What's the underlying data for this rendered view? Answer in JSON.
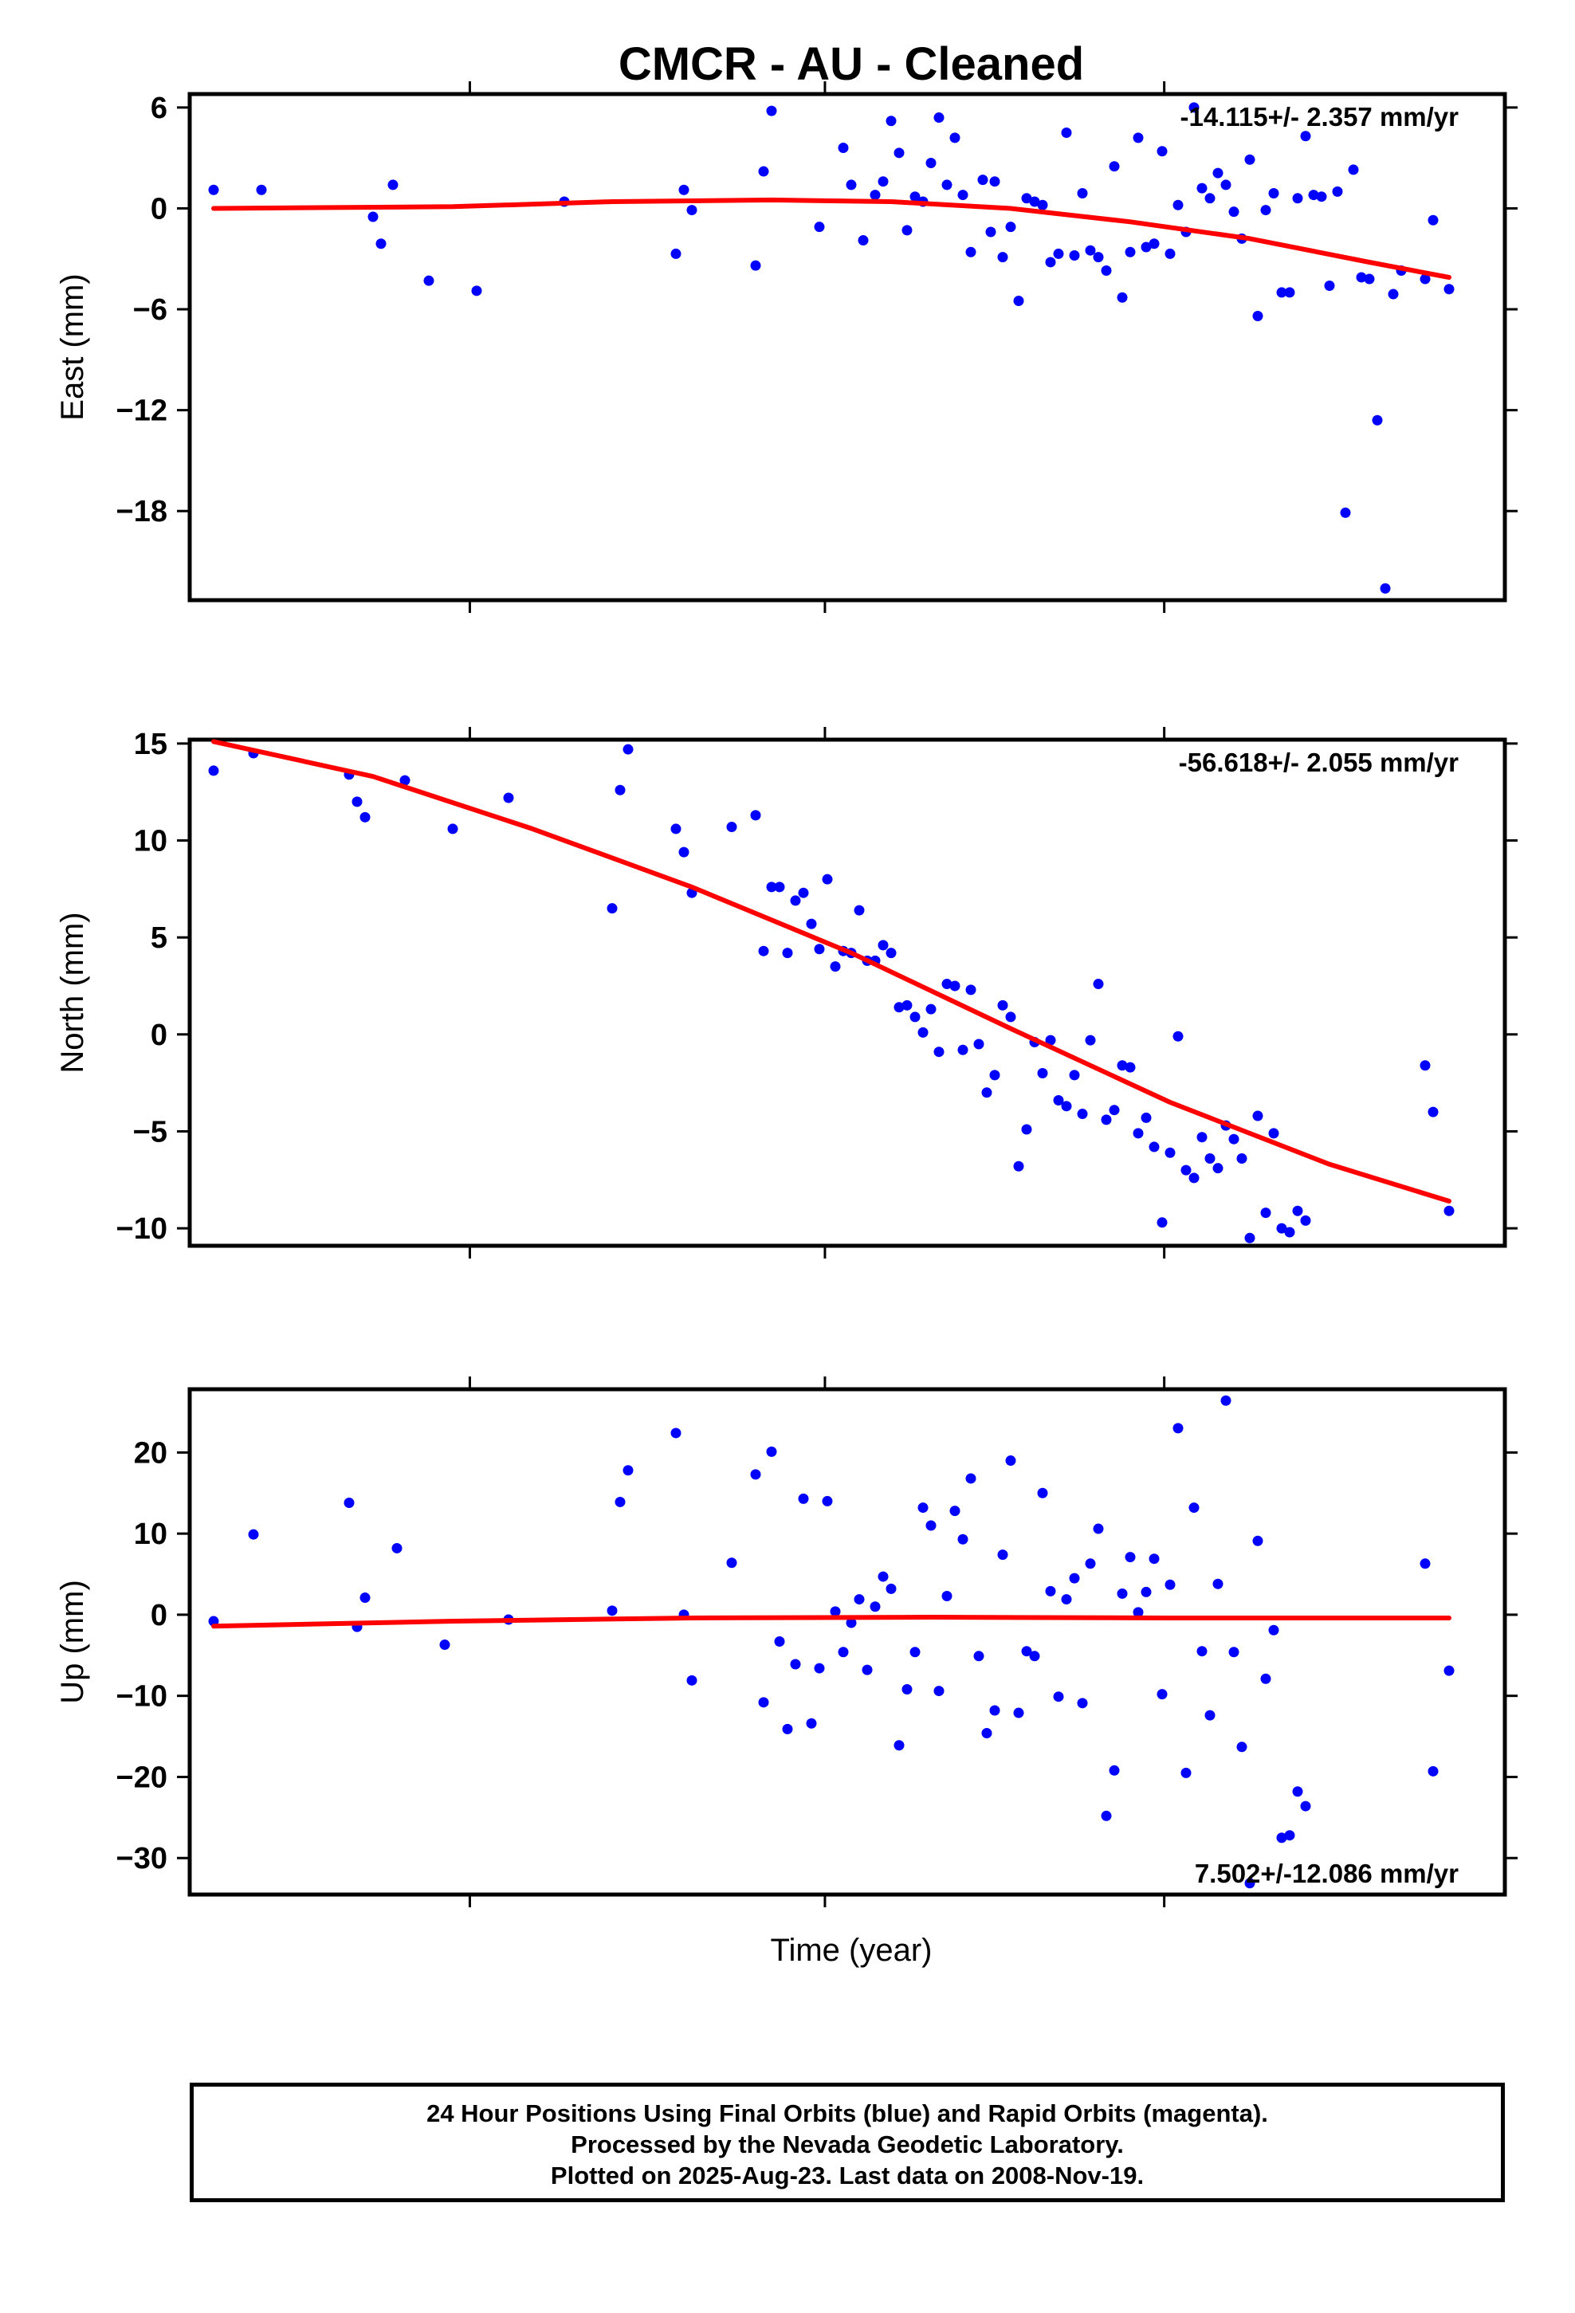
{
  "chart_data": {
    "title": "CMCR  - AU - Cleaned",
    "xlabel": "Time (year)",
    "type": "scatter",
    "panels": [
      {
        "name": "east",
        "ylabel": "East (mm)",
        "ylim": [
          -23.3,
          6.8
        ],
        "yticks": [
          6,
          0,
          -6,
          -12,
          -18
        ],
        "ytick_labels": [
          "6",
          "0",
          "−6",
          "−12",
          "−18"
        ],
        "rate_text": "-14.115+/- 2.357 mm/yr",
        "rate_pos": "top-right",
        "points": [
          [
            0.0,
            1.1
          ],
          [
            0.06,
            1.1
          ],
          [
            0.2,
            -0.5
          ],
          [
            0.21,
            -2.1
          ],
          [
            0.225,
            1.4
          ],
          [
            0.27,
            -4.3
          ],
          [
            0.33,
            -4.9
          ],
          [
            0.44,
            0.4
          ],
          [
            0.58,
            -2.7
          ],
          [
            0.59,
            1.1
          ],
          [
            0.6,
            -0.1
          ],
          [
            0.68,
            -3.4
          ],
          [
            0.69,
            2.2
          ],
          [
            0.7,
            5.8
          ],
          [
            0.76,
            -1.1
          ],
          [
            0.79,
            3.6
          ],
          [
            0.8,
            1.4
          ],
          [
            0.815,
            -1.9
          ],
          [
            0.83,
            0.8
          ],
          [
            0.84,
            1.6
          ],
          [
            0.85,
            5.2
          ],
          [
            0.86,
            3.3
          ],
          [
            0.87,
            -1.3
          ],
          [
            0.88,
            0.7
          ],
          [
            0.89,
            0.4
          ],
          [
            0.9,
            2.7
          ],
          [
            0.91,
            5.4
          ],
          [
            0.92,
            1.4
          ],
          [
            0.93,
            4.2
          ],
          [
            0.94,
            0.8
          ],
          [
            0.95,
            -2.6
          ],
          [
            0.965,
            1.7
          ],
          [
            0.975,
            -1.4
          ],
          [
            0.98,
            1.6
          ],
          [
            0.99,
            -2.9
          ],
          [
            1.0,
            -1.1
          ],
          [
            1.01,
            -5.5
          ],
          [
            1.02,
            0.6
          ],
          [
            1.03,
            0.4
          ],
          [
            1.04,
            0.2
          ],
          [
            1.05,
            -3.2
          ],
          [
            1.06,
            -2.7
          ],
          [
            1.07,
            4.5
          ],
          [
            1.08,
            -2.8
          ],
          [
            1.09,
            0.9
          ],
          [
            1.1,
            -2.5
          ],
          [
            1.11,
            -2.9
          ],
          [
            1.12,
            -3.7
          ],
          [
            1.13,
            2.5
          ],
          [
            1.14,
            -5.3
          ],
          [
            1.15,
            -2.6
          ],
          [
            1.16,
            4.2
          ],
          [
            1.17,
            -2.3
          ],
          [
            1.18,
            -2.1
          ],
          [
            1.19,
            3.4
          ],
          [
            1.2,
            -2.7
          ],
          [
            1.21,
            0.2
          ],
          [
            1.22,
            -1.4
          ],
          [
            1.23,
            6.0
          ],
          [
            1.24,
            1.2
          ],
          [
            1.25,
            0.6
          ],
          [
            1.26,
            2.1
          ],
          [
            1.27,
            1.4
          ],
          [
            1.28,
            -0.2
          ],
          [
            1.29,
            -1.8
          ],
          [
            1.3,
            2.9
          ],
          [
            1.31,
            -6.4
          ],
          [
            1.32,
            -0.1
          ],
          [
            1.33,
            0.9
          ],
          [
            1.34,
            -5.0
          ],
          [
            1.35,
            -5.0
          ],
          [
            1.36,
            0.6
          ],
          [
            1.37,
            4.3
          ],
          [
            1.38,
            0.8
          ],
          [
            1.39,
            0.7
          ],
          [
            1.4,
            -4.6
          ],
          [
            1.41,
            1.0
          ],
          [
            1.42,
            -18.1
          ],
          [
            1.43,
            2.3
          ],
          [
            1.44,
            -4.1
          ],
          [
            1.45,
            -4.2
          ],
          [
            1.46,
            -12.6
          ],
          [
            1.47,
            -22.6
          ],
          [
            1.48,
            -5.1
          ],
          [
            1.49,
            -3.7
          ],
          [
            1.52,
            -4.2
          ],
          [
            1.53,
            -0.7
          ],
          [
            1.55,
            -4.8
          ]
        ],
        "fit": [
          [
            0.0,
            0.0
          ],
          [
            0.3,
            0.1
          ],
          [
            0.5,
            0.4
          ],
          [
            0.7,
            0.5
          ],
          [
            0.85,
            0.4
          ],
          [
            1.0,
            0.0
          ],
          [
            1.15,
            -0.8
          ],
          [
            1.3,
            -1.8
          ],
          [
            1.45,
            -3.2
          ],
          [
            1.55,
            -4.1
          ]
        ]
      },
      {
        "name": "north",
        "ylabel": "North (mm)",
        "ylim": [
          -10.9,
          15.2
        ],
        "yticks": [
          15,
          10,
          5,
          0,
          -5,
          -10
        ],
        "ytick_labels": [
          "15",
          "10",
          "5",
          "0",
          "−5",
          "−10"
        ],
        "rate_text": "-56.618+/- 2.055 mm/yr",
        "rate_pos": "top-right",
        "points": [
          [
            0.0,
            13.6
          ],
          [
            0.05,
            14.5
          ],
          [
            0.17,
            13.4
          ],
          [
            0.18,
            12.0
          ],
          [
            0.19,
            11.2
          ],
          [
            0.24,
            13.1
          ],
          [
            0.3,
            10.6
          ],
          [
            0.37,
            12.2
          ],
          [
            0.5,
            6.5
          ],
          [
            0.51,
            12.6
          ],
          [
            0.52,
            14.7
          ],
          [
            0.58,
            10.6
          ],
          [
            0.59,
            9.4
          ],
          [
            0.6,
            7.3
          ],
          [
            0.65,
            10.7
          ],
          [
            0.68,
            11.3
          ],
          [
            0.69,
            4.3
          ],
          [
            0.7,
            7.6
          ],
          [
            0.71,
            7.6
          ],
          [
            0.72,
            4.2
          ],
          [
            0.73,
            6.9
          ],
          [
            0.74,
            7.3
          ],
          [
            0.75,
            5.7
          ],
          [
            0.76,
            4.4
          ],
          [
            0.77,
            8.0
          ],
          [
            0.78,
            3.5
          ],
          [
            0.79,
            4.3
          ],
          [
            0.8,
            4.2
          ],
          [
            0.81,
            6.4
          ],
          [
            0.82,
            3.8
          ],
          [
            0.83,
            3.8
          ],
          [
            0.84,
            4.6
          ],
          [
            0.85,
            4.2
          ],
          [
            0.86,
            1.4
          ],
          [
            0.87,
            1.5
          ],
          [
            0.88,
            0.9
          ],
          [
            0.89,
            0.1
          ],
          [
            0.9,
            1.3
          ],
          [
            0.91,
            -0.9
          ],
          [
            0.92,
            2.6
          ],
          [
            0.93,
            2.5
          ],
          [
            0.94,
            -0.8
          ],
          [
            0.95,
            2.3
          ],
          [
            0.96,
            -0.5
          ],
          [
            0.97,
            -3.0
          ],
          [
            0.98,
            -2.1
          ],
          [
            0.99,
            1.5
          ],
          [
            1.0,
            0.9
          ],
          [
            1.01,
            -6.8
          ],
          [
            1.02,
            -4.9
          ],
          [
            1.03,
            -0.4
          ],
          [
            1.04,
            -2.0
          ],
          [
            1.05,
            -0.3
          ],
          [
            1.06,
            -3.4
          ],
          [
            1.07,
            -3.7
          ],
          [
            1.08,
            -2.1
          ],
          [
            1.09,
            -4.1
          ],
          [
            1.1,
            -0.3
          ],
          [
            1.11,
            2.6
          ],
          [
            1.12,
            -4.4
          ],
          [
            1.13,
            -3.9
          ],
          [
            1.14,
            -1.6
          ],
          [
            1.15,
            -1.7
          ],
          [
            1.16,
            -5.1
          ],
          [
            1.17,
            -4.3
          ],
          [
            1.18,
            -5.8
          ],
          [
            1.19,
            -9.7
          ],
          [
            1.2,
            -6.1
          ],
          [
            1.21,
            -0.1
          ],
          [
            1.22,
            -7.0
          ],
          [
            1.23,
            -7.4
          ],
          [
            1.24,
            -5.3
          ],
          [
            1.25,
            -6.4
          ],
          [
            1.26,
            -6.9
          ],
          [
            1.27,
            -4.7
          ],
          [
            1.28,
            -5.4
          ],
          [
            1.29,
            -6.4
          ],
          [
            1.3,
            -10.5
          ],
          [
            1.31,
            -4.2
          ],
          [
            1.32,
            -9.2
          ],
          [
            1.33,
            -5.1
          ],
          [
            1.34,
            -10.0
          ],
          [
            1.35,
            -10.2
          ],
          [
            1.36,
            -9.1
          ],
          [
            1.37,
            -9.6
          ],
          [
            1.52,
            -1.6
          ],
          [
            1.53,
            -4.0
          ],
          [
            1.55,
            -9.1
          ]
        ],
        "fit": [
          [
            0.0,
            15.1
          ],
          [
            0.2,
            13.3
          ],
          [
            0.4,
            10.6
          ],
          [
            0.6,
            7.6
          ],
          [
            0.8,
            4.2
          ],
          [
            1.0,
            0.3
          ],
          [
            1.2,
            -3.5
          ],
          [
            1.4,
            -6.7
          ],
          [
            1.55,
            -8.6
          ]
        ]
      },
      {
        "name": "up",
        "ylabel": "Up (mm)",
        "ylim": [
          -34.5,
          27.8
        ],
        "yticks": [
          20,
          10,
          0,
          -10,
          -20,
          -30
        ],
        "ytick_labels": [
          "20",
          "10",
          "0",
          "−10",
          "−20",
          "−30"
        ],
        "rate_text": "7.502+/-12.086 mm/yr",
        "rate_pos": "bottom-right",
        "points": [
          [
            0.0,
            -0.8
          ],
          [
            0.05,
            9.9
          ],
          [
            0.17,
            13.8
          ],
          [
            0.18,
            -1.5
          ],
          [
            0.19,
            2.1
          ],
          [
            0.23,
            8.2
          ],
          [
            0.29,
            -3.7
          ],
          [
            0.37,
            -0.6
          ],
          [
            0.5,
            0.5
          ],
          [
            0.51,
            13.9
          ],
          [
            0.52,
            17.8
          ],
          [
            0.58,
            22.4
          ],
          [
            0.59,
            0.0
          ],
          [
            0.6,
            -8.1
          ],
          [
            0.65,
            6.4
          ],
          [
            0.68,
            17.3
          ],
          [
            0.69,
            -10.8
          ],
          [
            0.7,
            20.1
          ],
          [
            0.71,
            -3.3
          ],
          [
            0.72,
            -14.1
          ],
          [
            0.73,
            -6.1
          ],
          [
            0.74,
            14.3
          ],
          [
            0.75,
            -13.4
          ],
          [
            0.76,
            -6.6
          ],
          [
            0.77,
            14.0
          ],
          [
            0.78,
            0.4
          ],
          [
            0.79,
            -4.6
          ],
          [
            0.8,
            -1.0
          ],
          [
            0.81,
            1.9
          ],
          [
            0.82,
            -6.8
          ],
          [
            0.83,
            1.0
          ],
          [
            0.84,
            4.7
          ],
          [
            0.85,
            3.2
          ],
          [
            0.86,
            -16.1
          ],
          [
            0.87,
            -9.2
          ],
          [
            0.88,
            -4.6
          ],
          [
            0.89,
            13.2
          ],
          [
            0.9,
            11.0
          ],
          [
            0.91,
            -9.4
          ],
          [
            0.92,
            2.3
          ],
          [
            0.93,
            12.8
          ],
          [
            0.94,
            9.3
          ],
          [
            0.95,
            16.8
          ],
          [
            0.96,
            -5.1
          ],
          [
            0.97,
            -14.6
          ],
          [
            0.98,
            -11.8
          ],
          [
            0.99,
            7.4
          ],
          [
            1.0,
            19.0
          ],
          [
            1.01,
            -12.1
          ],
          [
            1.02,
            -4.5
          ],
          [
            1.03,
            -5.1
          ],
          [
            1.04,
            15.0
          ],
          [
            1.05,
            2.9
          ],
          [
            1.06,
            -10.1
          ],
          [
            1.07,
            1.9
          ],
          [
            1.08,
            4.5
          ],
          [
            1.09,
            -10.9
          ],
          [
            1.1,
            6.3
          ],
          [
            1.11,
            10.6
          ],
          [
            1.12,
            -24.8
          ],
          [
            1.13,
            -19.2
          ],
          [
            1.14,
            2.6
          ],
          [
            1.15,
            7.1
          ],
          [
            1.16,
            0.3
          ],
          [
            1.17,
            2.8
          ],
          [
            1.18,
            6.9
          ],
          [
            1.19,
            -9.8
          ],
          [
            1.2,
            3.7
          ],
          [
            1.21,
            23.0
          ],
          [
            1.22,
            -19.5
          ],
          [
            1.23,
            13.2
          ],
          [
            1.24,
            -4.5
          ],
          [
            1.25,
            -12.4
          ],
          [
            1.26,
            3.8
          ],
          [
            1.27,
            26.4
          ],
          [
            1.28,
            -4.6
          ],
          [
            1.29,
            -16.3
          ],
          [
            1.3,
            -33.1
          ],
          [
            1.31,
            9.1
          ],
          [
            1.32,
            -7.9
          ],
          [
            1.33,
            -1.9
          ],
          [
            1.34,
            -27.5
          ],
          [
            1.35,
            -27.2
          ],
          [
            1.36,
            -21.8
          ],
          [
            1.37,
            -23.6
          ],
          [
            1.52,
            6.3
          ],
          [
            1.53,
            -19.3
          ],
          [
            1.55,
            -6.9
          ]
        ],
        "fit": [
          [
            0.0,
            -1.4
          ],
          [
            0.3,
            -0.8
          ],
          [
            0.6,
            -0.4
          ],
          [
            0.9,
            -0.3
          ],
          [
            1.2,
            -0.4
          ],
          [
            1.55,
            -0.4
          ]
        ]
      }
    ]
  },
  "footer": {
    "line1": "24 Hour Positions Using Final Orbits (blue) and Rapid Orbits (magenta).",
    "line2": "Processed by the Nevada Geodetic Laboratory.",
    "line3": "Plotted on 2025-Aug-23. Last data on 2008-Nov-19."
  },
  "colors": {
    "final_orbits": "#0000ff",
    "fit_line": "#ff0000",
    "frame": "#000000"
  }
}
